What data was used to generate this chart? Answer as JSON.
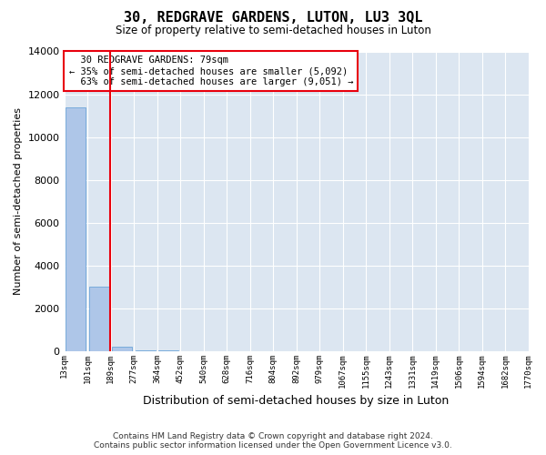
{
  "title": "30, REDGRAVE GARDENS, LUTON, LU3 3QL",
  "subtitle": "Size of property relative to semi-detached houses in Luton",
  "xlabel": "Distribution of semi-detached houses by size in Luton",
  "ylabel": "Number of semi-detached properties",
  "property_label": "30 REDGRAVE GARDENS: 79sqm",
  "smaller_pct": 35,
  "smaller_count": 5092,
  "larger_pct": 63,
  "larger_count": 9051,
  "bar_color": "#aec6e8",
  "bar_edge_color": "#5b9bd5",
  "vline_color": "#e8000d",
  "annotation_box_edge": "#e8000d",
  "background_color": "#dce6f1",
  "grid_color": "#ffffff",
  "bin_labels": [
    "13sqm",
    "101sqm",
    "189sqm",
    "277sqm",
    "364sqm",
    "452sqm",
    "540sqm",
    "628sqm",
    "716sqm",
    "804sqm",
    "892sqm",
    "979sqm",
    "1067sqm",
    "1155sqm",
    "1243sqm",
    "1331sqm",
    "1419sqm",
    "1506sqm",
    "1594sqm",
    "1682sqm",
    "1770sqm"
  ],
  "bar_values": [
    11400,
    3000,
    200,
    50,
    20,
    10,
    5,
    3,
    2,
    2,
    1,
    1,
    1,
    0,
    0,
    0,
    0,
    0,
    0,
    0
  ],
  "ylim": [
    0,
    14000
  ],
  "yticks": [
    0,
    2000,
    4000,
    6000,
    8000,
    10000,
    12000,
    14000
  ],
  "footer_line1": "Contains HM Land Registry data © Crown copyright and database right 2024.",
  "footer_line2": "Contains public sector information licensed under the Open Government Licence v3.0.",
  "vline_x": 1.49
}
